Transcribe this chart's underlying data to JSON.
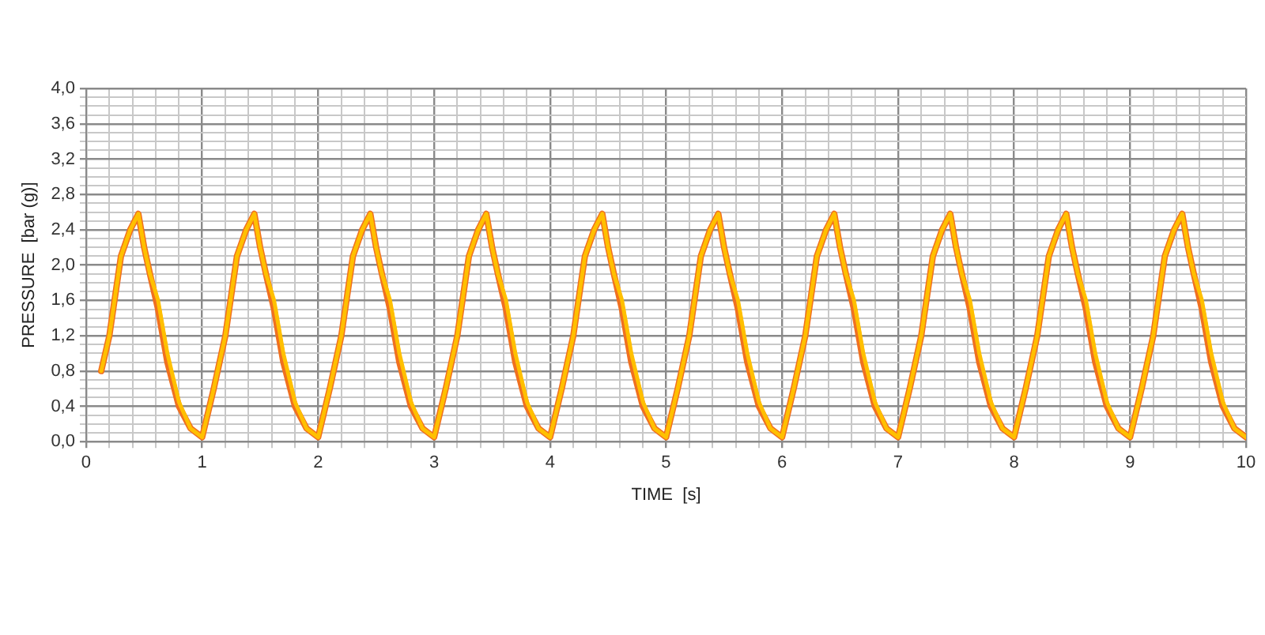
{
  "chart_data": {
    "type": "line",
    "xlabel": "TIME  [s]",
    "ylabel": "PRESSURE  [bar (g)]",
    "x": [
      0.13,
      0.2,
      0.3,
      0.38,
      0.45,
      0.5,
      0.55,
      0.62,
      0.7,
      0.8,
      0.9,
      1,
      1.1,
      1.2,
      1.3,
      1.38,
      1.45,
      1.5,
      1.55,
      1.62,
      1.7,
      1.8,
      1.9,
      2,
      2.1,
      2.2,
      2.3,
      2.38,
      2.45,
      2.5,
      2.55,
      2.62,
      2.7,
      2.8,
      2.9,
      3,
      3.1,
      3.2,
      3.3,
      3.38,
      3.45,
      3.5,
      3.55,
      3.62,
      3.7,
      3.8,
      3.9,
      4,
      4.1,
      4.2,
      4.3,
      4.38,
      4.45,
      4.5,
      4.55,
      4.62,
      4.7,
      4.8,
      4.9,
      5,
      5.1,
      5.2,
      5.3,
      5.38,
      5.45,
      5.5,
      5.55,
      5.62,
      5.7,
      5.8,
      5.9,
      6,
      6.1,
      6.2,
      6.3,
      6.38,
      6.45,
      6.5,
      6.55,
      6.62,
      6.7,
      6.8,
      6.9,
      7,
      7.1,
      7.2,
      7.3,
      7.38,
      7.45,
      7.5,
      7.55,
      7.62,
      7.7,
      7.8,
      7.9,
      8,
      8.1,
      8.2,
      8.3,
      8.38,
      8.45,
      8.5,
      8.55,
      8.62,
      8.7,
      8.8,
      8.9,
      9,
      9.1,
      9.2,
      9.3,
      9.38,
      9.45,
      9.5,
      9.55,
      9.62,
      9.7,
      9.8,
      9.9,
      10
    ],
    "series": [
      {
        "color": "#ffc000",
        "values": [
          0.8,
          1.2,
          2.1,
          2.4,
          2.58,
          2.2,
          1.9,
          1.6,
          1.0,
          0.45,
          0.15,
          0.05,
          0.6,
          1.2,
          2.1,
          2.4,
          2.58,
          2.2,
          1.9,
          1.6,
          1.0,
          0.45,
          0.15,
          0.05,
          0.6,
          1.2,
          2.1,
          2.4,
          2.58,
          2.2,
          1.9,
          1.6,
          1.0,
          0.45,
          0.15,
          0.05,
          0.6,
          1.2,
          2.1,
          2.4,
          2.58,
          2.2,
          1.9,
          1.6,
          1.0,
          0.45,
          0.15,
          0.05,
          0.6,
          1.2,
          2.1,
          2.4,
          2.58,
          2.2,
          1.9,
          1.6,
          1.0,
          0.45,
          0.15,
          0.05,
          0.6,
          1.2,
          2.1,
          2.4,
          2.58,
          2.2,
          1.9,
          1.6,
          1.0,
          0.45,
          0.15,
          0.05,
          0.6,
          1.2,
          2.1,
          2.4,
          2.58,
          2.2,
          1.9,
          1.6,
          1.0,
          0.45,
          0.15,
          0.05,
          0.6,
          1.2,
          2.1,
          2.4,
          2.58,
          2.2,
          1.9,
          1.6,
          1.0,
          0.45,
          0.15,
          0.05,
          0.6,
          1.2,
          2.1,
          2.4,
          2.58,
          2.2,
          1.9,
          1.6,
          1.0,
          0.45,
          0.15,
          0.05,
          0.6,
          1.2,
          2.1,
          2.4,
          2.58,
          2.2,
          1.9,
          1.6,
          1.0,
          0.45,
          0.15,
          0.05
        ]
      },
      {
        "color": "#f07020",
        "values": [
          0.8,
          1.2,
          2.1,
          2.4,
          2.58,
          2.2,
          1.9,
          1.5,
          0.9,
          0.4,
          0.15,
          0.05,
          0.6,
          1.2,
          2.1,
          2.4,
          2.58,
          2.2,
          1.9,
          1.5,
          0.9,
          0.4,
          0.15,
          0.05,
          0.6,
          1.2,
          2.1,
          2.4,
          2.58,
          2.2,
          1.9,
          1.5,
          0.9,
          0.4,
          0.15,
          0.05,
          0.6,
          1.2,
          2.1,
          2.4,
          2.58,
          2.2,
          1.9,
          1.5,
          0.9,
          0.4,
          0.15,
          0.05,
          0.6,
          1.2,
          2.1,
          2.4,
          2.58,
          2.2,
          1.9,
          1.5,
          0.9,
          0.4,
          0.15,
          0.05,
          0.6,
          1.2,
          2.1,
          2.4,
          2.58,
          2.2,
          1.9,
          1.5,
          0.9,
          0.4,
          0.15,
          0.05,
          0.6,
          1.2,
          2.1,
          2.4,
          2.58,
          2.2,
          1.9,
          1.5,
          0.9,
          0.4,
          0.15,
          0.05,
          0.6,
          1.2,
          2.1,
          2.4,
          2.58,
          2.2,
          1.9,
          1.5,
          0.9,
          0.4,
          0.15,
          0.05,
          0.6,
          1.2,
          2.1,
          2.4,
          2.58,
          2.2,
          1.9,
          1.5,
          0.9,
          0.4,
          0.15,
          0.05,
          0.6,
          1.2,
          2.1,
          2.4,
          2.58,
          2.2,
          1.9,
          1.5,
          0.9,
          0.4,
          0.15,
          0.05
        ]
      }
    ],
    "xlim": [
      0,
      10
    ],
    "xticks": [
      0,
      {
        "value": 0.2,
        "label": null
      },
      {
        "value": 0.4,
        "label": null
      },
      {
        "value": 0.6,
        "label": null
      },
      {
        "value": 0.8,
        "label": null
      },
      1,
      {
        "value": 1.2,
        "label": null
      },
      {
        "value": 1.4,
        "label": null
      },
      {
        "value": 1.6,
        "label": null
      },
      {
        "value": 1.8,
        "label": null
      },
      2,
      {
        "value": 2.2,
        "label": null
      },
      {
        "value": 2.4,
        "label": null
      },
      {
        "value": 2.6,
        "label": null
      },
      {
        "value": 2.8,
        "label": null
      },
      3,
      {
        "value": 3.2,
        "label": null
      },
      {
        "value": 3.4,
        "label": null
      },
      {
        "value": 3.6,
        "label": null
      },
      {
        "value": 3.8,
        "label": null
      },
      4,
      {
        "value": 4.2,
        "label": null
      },
      {
        "value": 4.4,
        "label": null
      },
      {
        "value": 4.6,
        "label": null
      },
      {
        "value": 4.8,
        "label": null
      },
      5,
      {
        "value": 5.2,
        "label": null
      },
      {
        "value": 5.4,
        "label": null
      },
      {
        "value": 5.6,
        "label": null
      },
      {
        "value": 5.8,
        "label": null
      },
      6,
      {
        "value": 6.2,
        "label": null
      },
      {
        "value": 6.4,
        "label": null
      },
      {
        "value": 6.6,
        "label": null
      },
      {
        "value": 6.8,
        "label": null
      },
      7,
      {
        "value": 7.2,
        "label": null
      },
      {
        "value": 7.4,
        "label": null
      },
      {
        "value": 7.6,
        "label": null
      },
      {
        "value": 7.8,
        "label": null
      },
      8,
      {
        "value": 8.2,
        "label": null
      },
      {
        "value": 8.4,
        "label": null
      },
      {
        "value": 8.6,
        "label": null
      },
      {
        "value": 8.8,
        "label": null
      },
      9,
      {
        "value": 9.2,
        "label": null
      },
      {
        "value": 9.4,
        "label": null
      },
      {
        "value": 9.6,
        "label": null
      },
      {
        "value": 9.8,
        "label": null
      },
      10
    ],
    "ylim": [
      0,
      4
    ],
    "yticks": [
      {
        "value": 0,
        "label": "0,0"
      },
      {
        "value": 0.1,
        "label": null
      },
      {
        "value": 0.2,
        "label": null
      },
      {
        "value": 0.3,
        "label": null
      },
      {
        "value": 0.4,
        "label": "0,4"
      },
      {
        "value": 0.5,
        "label": null
      },
      {
        "value": 0.6,
        "label": null
      },
      {
        "value": 0.7,
        "label": null
      },
      {
        "value": 0.8,
        "label": "0,8"
      },
      {
        "value": 0.9,
        "label": null
      },
      {
        "value": 1.0,
        "label": null
      },
      {
        "value": 1.1,
        "label": null
      },
      {
        "value": 1.2,
        "label": "1,2"
      },
      {
        "value": 1.3,
        "label": null
      },
      {
        "value": 1.4,
        "label": null
      },
      {
        "value": 1.5,
        "label": null
      },
      {
        "value": 1.6,
        "label": "1,6"
      },
      {
        "value": 1.7,
        "label": null
      },
      {
        "value": 1.8,
        "label": null
      },
      {
        "value": 1.9,
        "label": null
      },
      {
        "value": 2.0,
        "label": "2,0"
      },
      {
        "value": 2.1,
        "label": null
      },
      {
        "value": 2.2,
        "label": null
      },
      {
        "value": 2.3,
        "label": null
      },
      {
        "value": 2.4,
        "label": "2,4"
      },
      {
        "value": 2.5,
        "label": null
      },
      {
        "value": 2.6,
        "label": null
      },
      {
        "value": 2.7,
        "label": null
      },
      {
        "value": 2.8,
        "label": "2,8"
      },
      {
        "value": 2.9,
        "label": null
      },
      {
        "value": 3.0,
        "label": null
      },
      {
        "value": 3.1,
        "label": null
      },
      {
        "value": 3.2,
        "label": "3,2"
      },
      {
        "value": 3.3,
        "label": null
      },
      {
        "value": 3.4,
        "label": null
      },
      {
        "value": 3.5,
        "label": null
      },
      {
        "value": 3.6,
        "label": "3,6"
      },
      {
        "value": 3.7,
        "label": null
      },
      {
        "value": 3.8,
        "label": null
      },
      {
        "value": 3.9,
        "label": null
      },
      {
        "value": 4.0,
        "label": "4,0"
      }
    ],
    "grid": true,
    "legend": false,
    "marker": "none",
    "line_style": "solid"
  }
}
